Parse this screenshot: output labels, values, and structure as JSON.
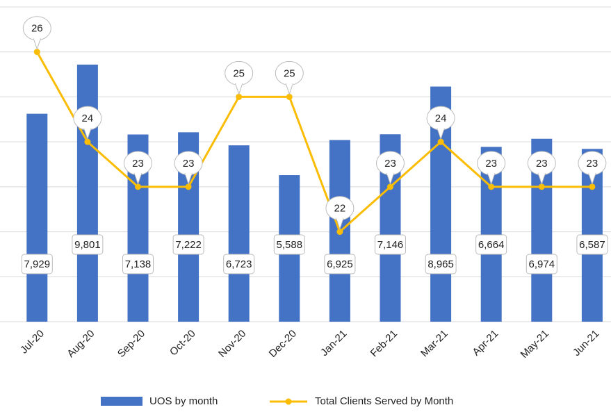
{
  "chart_data": {
    "type": "bar+line",
    "categories": [
      "Jul-20",
      "Aug-20",
      "Sep-20",
      "Oct-20",
      "Nov-20",
      "Dec-20",
      "Jan-21",
      "Feb-21",
      "Mar-21",
      "Apr-21",
      "May-21",
      "Jun-21"
    ],
    "series": [
      {
        "name": "UOS by month",
        "type": "bar",
        "color": "#4472c4",
        "values": [
          7929,
          9801,
          7138,
          7222,
          6723,
          5588,
          6925,
          7146,
          8965,
          6664,
          6974,
          6587
        ],
        "value_labels": [
          "7,929",
          "9,801",
          "7,138",
          "7,222",
          "6,723",
          "5,588",
          "6,925",
          "7,146",
          "8,965",
          "6,664",
          "6,974",
          "6,587"
        ]
      },
      {
        "name": "Total Clients Served by Month",
        "type": "line",
        "color": "#fbbc04",
        "axis": "y2",
        "values": [
          26,
          24,
          23,
          23,
          25,
          25,
          22,
          23,
          24,
          23,
          23,
          23
        ]
      }
    ],
    "ylim": [
      0,
      12000
    ],
    "y2lim": [
      20,
      27
    ],
    "y2ticks": [
      20,
      21,
      22,
      23,
      24,
      25,
      26,
      27
    ],
    "grid": true,
    "legend": "bottom"
  }
}
